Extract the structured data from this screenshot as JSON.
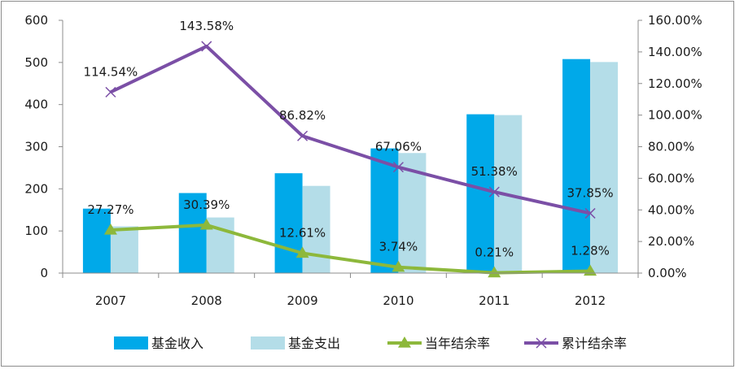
{
  "chart_data": {
    "type": "bar",
    "categories": [
      "2007",
      "2008",
      "2009",
      "2010",
      "2011",
      "2012"
    ],
    "series": [
      {
        "name": "基金收入",
        "kind": "bar",
        "axis": "left",
        "color": "#00a9e9",
        "values": [
          153,
          190,
          237,
          296,
          377,
          508
        ]
      },
      {
        "name": "基金支出",
        "kind": "bar",
        "axis": "left",
        "color": "#b4dde8",
        "values": [
          111,
          132,
          207,
          285,
          375,
          501
        ]
      },
      {
        "name": "当年结余率",
        "kind": "line",
        "axis": "right",
        "color": "#8db83b",
        "marker": "triangle",
        "values": [
          27.27,
          30.39,
          12.61,
          3.74,
          0.21,
          1.28
        ],
        "labels": [
          "27.27%",
          "30.39%",
          "12.61%",
          "3.74%",
          "0.21%",
          "1.28%"
        ]
      },
      {
        "name": "累计结余率",
        "kind": "line",
        "axis": "right",
        "color": "#7b4fa6",
        "marker": "x",
        "values": [
          114.54,
          143.58,
          86.82,
          67.06,
          51.38,
          37.85
        ],
        "labels": [
          "114.54%",
          "143.58%",
          "86.82%",
          "67.06%",
          "51.38%",
          "37.85%"
        ]
      }
    ],
    "left_axis": {
      "min": 0,
      "max": 600,
      "step": 100,
      "ticks": [
        "0",
        "100",
        "200",
        "300",
        "400",
        "500",
        "600"
      ]
    },
    "right_axis": {
      "min": 0,
      "max": 160,
      "step": 20,
      "ticks": [
        "0.00%",
        "20.00%",
        "40.00%",
        "60.00%",
        "80.00%",
        "100.00%",
        "120.00%",
        "140.00%",
        "160.00%"
      ]
    },
    "title": "",
    "xlabel": "",
    "ylabel": "",
    "grid": false,
    "legend_position": "bottom"
  }
}
